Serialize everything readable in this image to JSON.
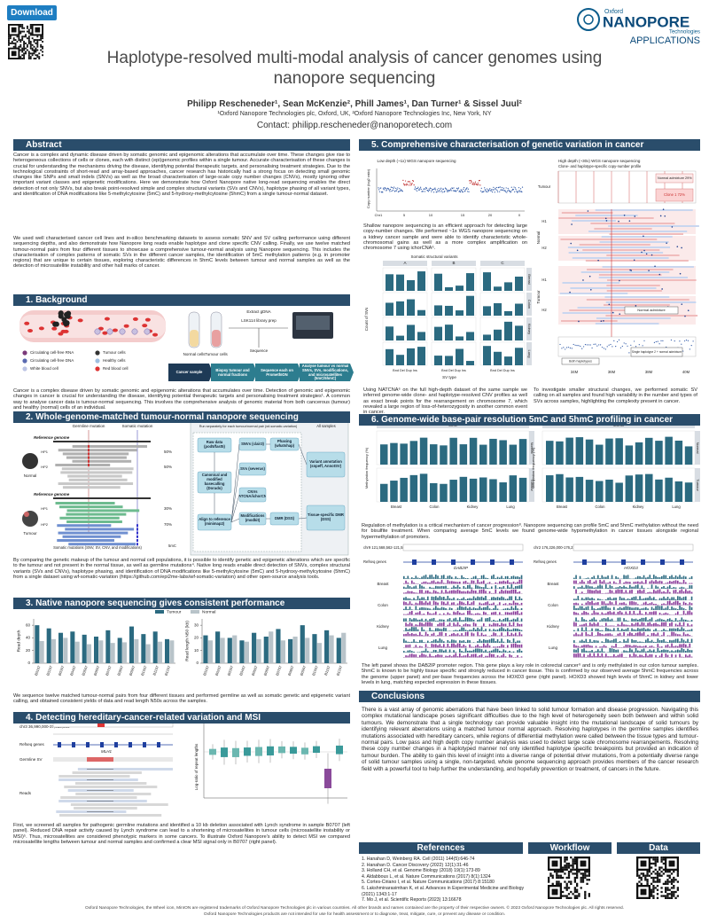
{
  "header": {
    "download": "Download",
    "brand_small": "Oxford",
    "brand": "NANOPORE",
    "brand_tech": "Technologies",
    "applications": "APPLICATIONS",
    "title": "Haplotype-resolved multi-modal analysis of cancer genomes using nanopore sequencing",
    "authors": "Philipp Rescheneder¹, Sean McKenzie², Phill James¹, Dan Turner¹ & Sissel Juul²",
    "affiliations": "¹Oxford Nanopore Technologies plc, Oxford, UK, ²Oxford Nanopore Technologies Inc, New York, NY",
    "contact": "Contact: philipp.rescheneder@nanoporetech.com"
  },
  "abstract": {
    "heading": "Abstract",
    "text": "Cancer is a complex and dynamic disease driven by somatic genomic and epigenomic alterations that accumulate over time. These changes give rise to heterogeneous collections of cells or clones, each with distinct (epi)genomic profiles within a single tumour. Accurate characterisation of these changes is crucial for understanding the mechanisms driving the disease, identifying potential therapeutic targets, and personalising treatment strategies. Due to the technological constraints of short-read and array-based approaches, cancer research has historically had a strong focus on detecting small genomic changes like SNPs and small indels (SNVs) as well as the broad characterisation of large-scale copy number changes (CNVs), mostly ignoring other important variant classes and epigenetic modifications. Here we demonstrate how Oxford Nanopore native long-read sequencing enables the direct detection of not only SNVs, but also break point-resolved simple and complex structural variants (SVs and CNVs), haplotype phasing of all variant types, and identification of DNA modifications like 5-methylcytosine (5mC) and 5-hydroxy-methylcytosine (5hmC) from a single tumour-normal dataset.",
    "text2": "We used well characterised cancer cell lines and in-silico benchmarking datasets to assess somatic SNV and SV calling performance using different sequencing depths, and also demonstrate how Nanopore long reads enable haplotype and clone specific CNV calling. Finally, we use twelve matched tumour-normal pairs from four different tissues to showcase a comprehensive tumour-normal analysis using Nanopore sequencing. This includes the characterisation of complex patterns of somatic SVs in the different cancer samples, the identification of 5mC methylation patterns (e.g. in promoter regions) that are unique to certain tissues, exploring characteristic differences in 5hmC levels between tumour and normal samples as well as the detection of microsatellite instability and other hall marks of cancer."
  },
  "background": {
    "heading": "1. Background",
    "legend": [
      "Circulating cell-free RNA",
      "Circulating cell-free DNA",
      "White blood cell",
      "Tumour cells",
      "Healthy cells",
      "Red blood cell"
    ],
    "normal_cells": "Normal cells",
    "tumour_cells": "Tumour cells",
    "extract": "Extract gDNA",
    "library": "LSK114 library prep",
    "sequence": "Sequence",
    "steps": [
      "Cancer sample",
      "Biopsy tumour and normal fractions",
      "Sequence each on PromethION",
      "Analyse tumour vs normal SNVs, SVs, modifications, and microsatellites (5mC/5hmC)"
    ],
    "caption": "Cancer is a complex disease driven by somatic genomic and epigenomic alterations that accumulates over time. Detection of genomic and epigenomic changes in cancer is crucial for understanding the disease, identifying potential therapeutic targets and personalising treatment strategies¹. A common way to analyse cancer data is tumour-normal sequencing. This involves the comprehensive analysis of genomic material from both cancerous (tumour) and healthy (normal) cells of an individual."
  },
  "workflow": {
    "heading": "2. Whole-genome-matched tumour-normal nanopore sequencing",
    "germline": "Germline mutation",
    "somatic": "Somatic mutation",
    "reference": "Reference genome",
    "normal": "Normal",
    "tumour": "Tumour",
    "hp1": "HP1",
    "hp2": "HP2",
    "somatic_mutations": "Somatic mutations (SNV, SV, CNV, and modifications)",
    "mod": "5mC",
    "fractions": [
      "50%",
      "50%",
      "30%",
      "70%"
    ],
    "run_note": "Run separately for each tumour/normal pair (wf-somatic-variation)",
    "all_samples": "All samples",
    "raw": "Raw data (pod5/fast5)",
    "basecall": "Canonical and modified basecalling (Dorado)",
    "align": "Align to reference (minimap2)",
    "snv": "SNVs (clair3)",
    "sv": "SVs (severus)",
    "cnv": "CNVs (NATCNA/ichorCNA)",
    "mods": "Modifications (modkit)",
    "phasing": "Phasing (whatshap)",
    "dmr": "DMR (DSS)",
    "annotation": "Variant annotation (snpeff, AnnotSV)",
    "tissue_dmr": "Tissue-specific DMR (DSS)",
    "caption": "By comparing the genetic makeup of the tumour and normal cell populations, it is possible to identify genetic and epigenetic alterations which are specific to the tumour and not present in the normal tissue, as well as germline mutations⁴. Native long reads enable direct detection of SNVs, complex structural variants (SVs and CNVs), haplotype phasing, and identification of DNA modifications like 5-methylcytosine (5mC) and 5-hydroxy-methylcytosine (5hmC) from a single dataset using wf-somatic-variation (https://github.com/epi2me-labs/wf-somatic-variation) and other open-source analysis tools."
  },
  "performance": {
    "heading": "3. Native nanopore sequencing gives consistent performance",
    "caption": "We sequence twelve matched tumour-normal pairs from four different tissues and performed germline as well as somatic genetic and epigenetic variant calling, and obtained consistent yields of data and read length N50s across the samples."
  },
  "chart_data": [
    {
      "type": "bar",
      "y_label": "Read depth",
      "categories": [
        "B0107",
        "B0207",
        "B0307",
        "B0407",
        "B0507",
        "B0607",
        "B0707",
        "B0807",
        "B0907",
        "B1007",
        "B1107",
        "B1207"
      ],
      "series": [
        {
          "name": "Tumour",
          "color": "#2b6a80",
          "values": [
            60,
            55,
            48,
            50,
            45,
            42,
            52,
            40,
            58,
            46,
            50,
            38
          ]
        },
        {
          "name": "Normal",
          "color": "#b8c3c9",
          "values": [
            35,
            38,
            40,
            34,
            30,
            36,
            32,
            33,
            38,
            30,
            34,
            36
          ]
        }
      ],
      "ylim": [
        0,
        70
      ],
      "yticks": [
        0,
        20,
        40,
        60
      ]
    },
    {
      "type": "bar",
      "y_label": "Read length N50 (kb)",
      "categories": [
        "B0107",
        "B0207",
        "B0307",
        "B0407",
        "B0507",
        "B0607",
        "B0707",
        "B0807",
        "B0907",
        "B1007",
        "B1107",
        "B1207"
      ],
      "series": [
        {
          "name": "Tumour",
          "color": "#2b6a80",
          "values": [
            22,
            25,
            20,
            18,
            24,
            21,
            27,
            19,
            30,
            23,
            26,
            20
          ]
        },
        {
          "name": "Normal",
          "color": "#b8c3c9",
          "values": [
            18,
            20,
            22,
            17,
            19,
            25,
            18,
            21,
            20,
            16,
            22,
            24
          ]
        }
      ],
      "ylim": [
        0,
        35
      ],
      "yticks": [
        0,
        10,
        20,
        30
      ]
    }
  ],
  "msi": {
    "heading": "4. Detecting hereditary-cancer-related variation and MSI",
    "locus": "chr3 36,990,000-37,010,000",
    "refseq": "Refseq genes",
    "gene": "MLH1",
    "germline": "Germline SV",
    "reads": "Reads",
    "axis": "Log-ratio of repeat lengths",
    "caption": "First, we screened all samples for pathogenic germline mutations and identified a 10 kb deletion associated with Lynch syndrome in sample B0707 (left panel). Reduced DNA repair activity caused by Lynch syndrome can lead to a shortening of microsatellites in tumour cells (microsatellite instability or MSI)⁵. Thus, microsatellites are considered phenotypic markers in some cancers. To illustrate Oxford Nanopore's ability to detect MSI we compared microsatellite lengths between tumour and normal samples and confirmed a clear MSI signal only in B0707 (right panel)."
  },
  "variation": {
    "heading": "5. Comprehensive characterisation of genetic variation in cancer",
    "low_title": "Low depth (~1x) WGS nanopore sequencing",
    "cn_axis": "Copy number (log2 ratio)",
    "chroms": [
      "Chr1",
      "5",
      "10",
      "15",
      "20",
      "X"
    ],
    "low_text": "Shallow nanopore sequencing is an efficient approach for detecting large copy-number changes. We performed ~1x WGS nanopore sequencing on a kidney cancer sample and were able to identify characteristic whole-chromosomal gains as well as a more complex amplification on chromosome 7 using ichorCNA⁶.",
    "sv_title": "Somatic structural variants",
    "sv_cols": [
      "A",
      "B",
      "C"
    ],
    "sv_rows": [
      "Breast",
      "Colon",
      "Kidney",
      "Lung"
    ],
    "sv_y": "Count of SVs",
    "sv_x": "SV type",
    "sv_types": "Bnd Del Dup Ins",
    "high_title": "High depth (~30x) WGS nanopore sequencing",
    "high_sub": "Clone- and haplotype-specific copy-number profile",
    "normal_adm": "Normal admixture 29%",
    "clone": "Clone 1 72%",
    "normal": "Normal",
    "tumour": "Tumour",
    "h1": "H1",
    "h2": "H2",
    "normal_admixture": "Normal admixture",
    "single_hap": "Single haplotype 2 + normal admixture",
    "both_hap": "Both haplotypes",
    "positions": [
      "34M",
      "36M",
      "38M",
      "40M"
    ],
    "text_left": "Using NATCNA⁶ on the full high-depth dataset of the same sample we inferred genome-wide clone- and haplotype-resolved CNV profiles as well as exact break points for the rearrangement on chromosome 7, which revealed a large region of loss-of-heterozygosity in another common event in cancer.",
    "text_right": "To investigate smaller structural changes, we performed somatic SV calling on all samples and found high variability in the number and types of SVs across samples, highlighting the complexity present in cancer."
  },
  "methylation": {
    "heading": "6. Genome-wide base-pair resolution 5mC and 5hmC profiling in cancer",
    "m5c": "5mC",
    "m5hmc": "5hmC",
    "axis": "Methylation frequency (%)",
    "normal": "Normal",
    "tumour": "Tumour",
    "tissues": [
      "Breast",
      "Colon",
      "Kidney",
      "Lung"
    ],
    "text1": "Regulation of methylation is a critical mechanism of cancer progression⁸. Nanopore sequencing can profile 5mC and 5hmC methylation without the need for bisulfite treatment. When comparing average 5mC levels we found genome-wide hypomethylation in cancer tissues alongside regional hypermethylation of promoters.",
    "locus1": "chr9 121,568,562-121,589,666",
    "locus2": "chr2 176,226,000-176,232,567",
    "refseq": "Refseq genes",
    "gene1": "DAB2IP",
    "gene2": "HOXD3",
    "text2": "The left panel shows the DAB2IP promoter region. This gene plays a key role in colorectal cancer⁹ and is only methylated in our colon tumour samples. 5hmC is known to be highly tissue specific and strongly reduced in cancer tissue. This is confirmed by our observed average 5hmC frequencies across the genome (upper panel) and per-base frequencies across the HOXD3 gene (right panel). HOXD3 showed high levels of 5hmC in kidney and lower levels in lung, matching expected expression in these tissues."
  },
  "conclusions": {
    "heading": "Conclusions",
    "text": "There is a vast array of genomic aberrations that have been linked to solid tumour formation and disease progression. Navigating this complex mutational landscape poses significant difficulties due to the high level of heterogeneity seen both between and within solid tumours. We demonstrate that a single technology can provide valuable insight into the mutational landscape of solid tumours by identifying relevant aberrations using a matched tumour normal approach. Resolving haplotypes in the germline samples identifies mutations associated with hereditary cancers, while regions of differential methylation were called between the tissue types and tumour-normal pairs. Low pass and high depth copy number analysis was used to detect large scale chromosome rearrangements. Resolving these copy number changes in a haplotyped manner not only identified haplotype specific breakpoints but provided an indication of tumour burden. The ability to gain this level of insight into a diverse range of potential driver mutations, from a potentially diverse range of solid tumour samples using a single, non-targeted, whole genome sequencing approach provides members of the cancer research field with a powerful tool to help further the understanding, and hopefully prevention or treatment, of cancers in the future."
  },
  "references": {
    "heading": "References",
    "items": [
      "1. Hanahan D, Weinberg RA. Cell (2011) 144(5):646-74",
      "2. Hanahan D. Cancer Discovery (2022) 12(1):31-46",
      "3. Holland CH, et al. Genome Biology (2018) 19(1):173-89",
      "4. Aldabbous L, et al. Nature Communications (2017) 8(1):1324",
      "5. Cortes-Ciriano I, et al. Nature Communications (2017) 8:15180",
      "6. Lakshminarasimhan K, et al. Advances in Experimental Medicine and Biology (2021) 1343:1-17",
      "7. Mo J, et al. Scientific Reports (2023) 13:16678"
    ]
  },
  "workflow_box": {
    "heading": "Workflow"
  },
  "data_box": {
    "heading": "Data"
  },
  "footer": {
    "line1": "Oxford Nanopore Technologies, the Wheel icon, MinION are registered trademarks of Oxford Nanopore Technologies plc in various countries. All other brands and names contained are the property of their respective owners. © 2023 Oxford Nanopore Technologies plc. All rights reserved.",
    "line2": "Oxford Nanopore Technologies products are not intended for use for health assessment or to diagnose, treat, mitigate, cure, or prevent any disease or condition."
  }
}
